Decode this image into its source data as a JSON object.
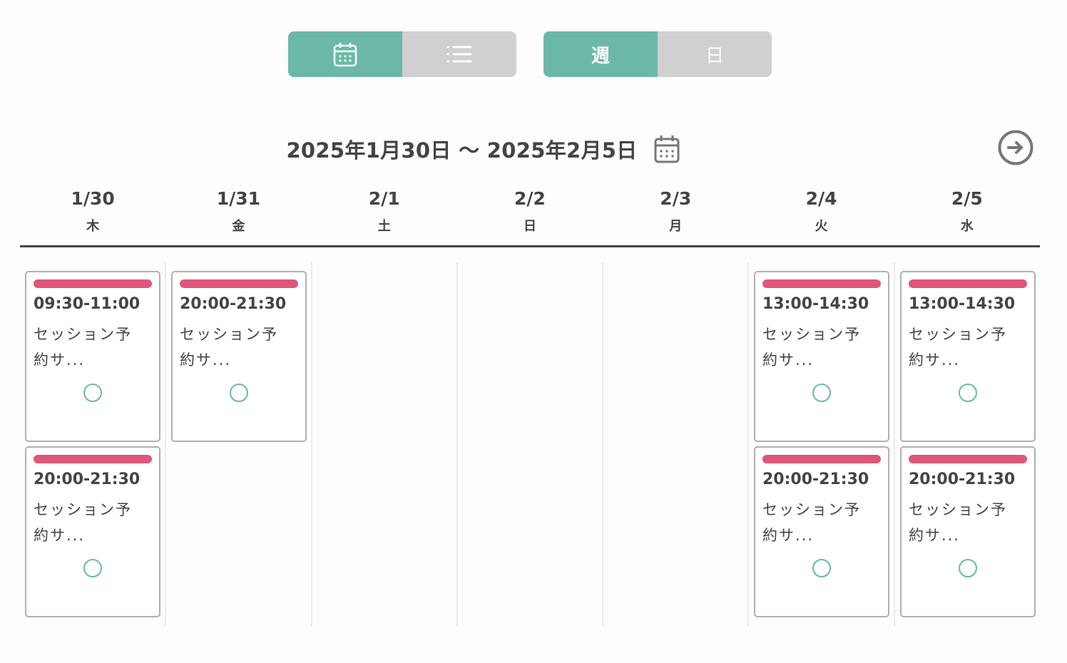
{
  "view_toggle": {
    "calendar_icon": "calendar-icon",
    "list_icon": "list-icon",
    "active": "calendar"
  },
  "range_toggle": {
    "week": "週",
    "day": "日",
    "active": "week"
  },
  "header": {
    "title": "2025年1月30日 〜 2025年2月5日"
  },
  "colors": {
    "accent": "#6cb8a8",
    "event_bar": "#e0557a",
    "inactive": "#d0d0d0"
  },
  "days": [
    {
      "date": "1/30",
      "weekday": "木",
      "events": [
        {
          "time": "09:30-11:00",
          "name": "セッション予約サ...",
          "status": "available"
        },
        {
          "time": "20:00-21:30",
          "name": "セッション予約サ...",
          "status": "available"
        }
      ]
    },
    {
      "date": "1/31",
      "weekday": "金",
      "events": [
        {
          "time": "20:00-21:30",
          "name": "セッション予約サ...",
          "status": "available"
        }
      ]
    },
    {
      "date": "2/1",
      "weekday": "土",
      "events": []
    },
    {
      "date": "2/2",
      "weekday": "日",
      "events": []
    },
    {
      "date": "2/3",
      "weekday": "月",
      "events": []
    },
    {
      "date": "2/4",
      "weekday": "火",
      "events": [
        {
          "time": "13:00-14:30",
          "name": "セッション予約サ...",
          "status": "available"
        },
        {
          "time": "20:00-21:30",
          "name": "セッション予約サ...",
          "status": "available"
        }
      ]
    },
    {
      "date": "2/5",
      "weekday": "水",
      "events": [
        {
          "time": "13:00-14:30",
          "name": "セッション予約サ...",
          "status": "available"
        },
        {
          "time": "20:00-21:30",
          "name": "セッション予約サ...",
          "status": "available"
        }
      ]
    }
  ]
}
